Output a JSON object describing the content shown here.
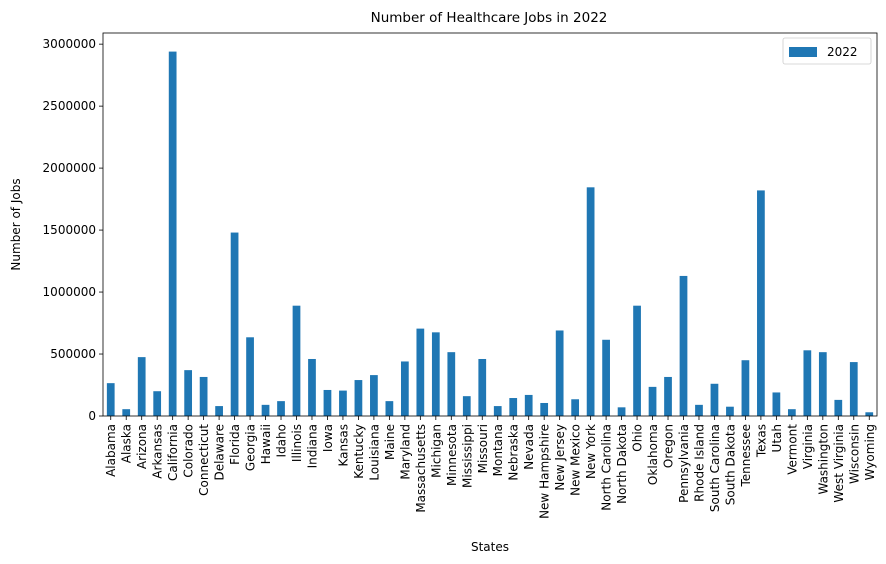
{
  "chart_data": {
    "type": "bar",
    "title": "Number of Healthcare Jobs in 2022",
    "xlabel": "States",
    "ylabel": "Number of Jobs",
    "ylim": [
      0,
      3090000
    ],
    "yticks": [
      0,
      500000,
      1000000,
      1500000,
      2000000,
      2500000,
      3000000
    ],
    "ytick_labels": [
      "0",
      "500000",
      "1000000",
      "1500000",
      "2000000",
      "2500000",
      "3000000"
    ],
    "grid": false,
    "legend_position": "top-right",
    "color": "#1f77b4",
    "categories": [
      "Alabama",
      "Alaska",
      "Arizona",
      "Arkansas",
      "California",
      "Colorado",
      "Connecticut",
      "Delaware",
      "Florida",
      "Georgia",
      "Hawaii",
      "Idaho",
      "Illinois",
      "Indiana",
      "Iowa",
      "Kansas",
      "Kentucky",
      "Louisiana",
      "Maine",
      "Maryland",
      "Massachusetts",
      "Michigan",
      "Minnesota",
      "Mississippi",
      "Missouri",
      "Montana",
      "Nebraska",
      "Nevada",
      "New Hampshire",
      "New Jersey",
      "New Mexico",
      "New York",
      "North Carolina",
      "North Dakota",
      "Ohio",
      "Oklahoma",
      "Oregon",
      "Pennsylvania",
      "Rhode Island",
      "South Carolina",
      "South Dakota",
      "Tennessee",
      "Texas",
      "Utah",
      "Vermont",
      "Virginia",
      "Washington",
      "West Virginia",
      "Wisconsin",
      "Wyoming"
    ],
    "series": [
      {
        "name": "2022",
        "values": [
          265000,
          55000,
          475000,
          200000,
          2940000,
          370000,
          315000,
          80000,
          1480000,
          635000,
          90000,
          120000,
          890000,
          460000,
          210000,
          205000,
          290000,
          330000,
          120000,
          440000,
          705000,
          675000,
          515000,
          160000,
          460000,
          80000,
          145000,
          170000,
          105000,
          690000,
          135000,
          1845000,
          615000,
          70000,
          890000,
          235000,
          315000,
          1130000,
          90000,
          260000,
          75000,
          450000,
          1820000,
          190000,
          55000,
          530000,
          515000,
          130000,
          435000,
          30000
        ]
      }
    ]
  }
}
